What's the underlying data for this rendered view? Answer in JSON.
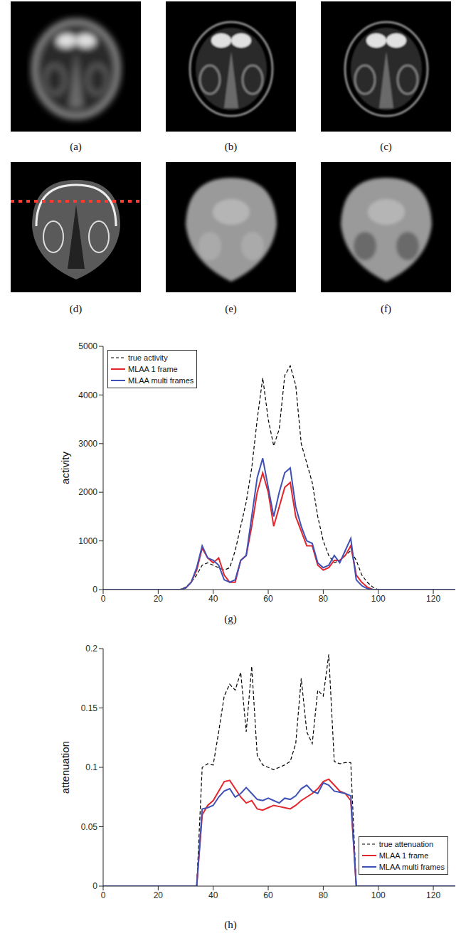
{
  "panels": [
    {
      "label": "(a)"
    },
    {
      "label": "(b)"
    },
    {
      "label": "(c)"
    },
    {
      "label": "(d)"
    },
    {
      "label": "(e)"
    },
    {
      "label": "(f)"
    }
  ],
  "chart_data": [
    {
      "label": "(g)",
      "type": "line",
      "ylabel": "activity",
      "legend": "upper left",
      "x": [
        0,
        2,
        4,
        6,
        8,
        10,
        12,
        14,
        16,
        18,
        20,
        22,
        24,
        26,
        28,
        30,
        32,
        34,
        36,
        38,
        40,
        42,
        44,
        46,
        48,
        50,
        52,
        54,
        56,
        58,
        60,
        62,
        64,
        66,
        68,
        70,
        72,
        74,
        76,
        78,
        80,
        82,
        84,
        86,
        88,
        90,
        92,
        94,
        96,
        98,
        100,
        102,
        104,
        106,
        108,
        110,
        112,
        114,
        116,
        118,
        120,
        122,
        124,
        126,
        128
      ],
      "xlim": [
        0,
        128
      ],
      "xticks": [
        0,
        20,
        40,
        60,
        80,
        100,
        120
      ],
      "ylim": [
        0,
        5000
      ],
      "yticks": [
        0,
        1000,
        2000,
        3000,
        4000,
        5000
      ],
      "series": [
        {
          "name": "true activity",
          "color": "#000000",
          "line_style": "dashed",
          "values": [
            0,
            0,
            0,
            0,
            0,
            0,
            0,
            0,
            0,
            0,
            0,
            0,
            0,
            0,
            0,
            50,
            150,
            300,
            500,
            550,
            500,
            450,
            400,
            450,
            800,
            1300,
            1800,
            2500,
            3500,
            4350,
            3500,
            2950,
            3300,
            4400,
            4600,
            4200,
            3000,
            2600,
            2200,
            1500,
            1000,
            700,
            550,
            600,
            700,
            800,
            600,
            300,
            150,
            50,
            0,
            0,
            0,
            0,
            0,
            0,
            0,
            0,
            0,
            0,
            0,
            0,
            0,
            0,
            0
          ]
        },
        {
          "name": "MLAA 1 frame",
          "color": "#e3262b",
          "line_style": "solid",
          "values": [
            0,
            0,
            0,
            0,
            0,
            0,
            0,
            0,
            0,
            0,
            0,
            0,
            0,
            0,
            0,
            30,
            150,
            400,
            850,
            650,
            550,
            650,
            300,
            150,
            150,
            600,
            700,
            1300,
            2000,
            2400,
            2000,
            1300,
            1700,
            2100,
            2200,
            1500,
            1200,
            900,
            900,
            500,
            400,
            450,
            600,
            600,
            700,
            900,
            300,
            150,
            50,
            0,
            0,
            0,
            0,
            0,
            0,
            0,
            0,
            0,
            0,
            0,
            0,
            0,
            0,
            0,
            0
          ]
        },
        {
          "name": "MLAA multi frames",
          "color": "#3f51b5",
          "line_style": "solid",
          "values": [
            0,
            0,
            0,
            0,
            0,
            0,
            0,
            0,
            0,
            0,
            0,
            0,
            0,
            0,
            0,
            30,
            150,
            450,
            900,
            650,
            600,
            500,
            200,
            150,
            200,
            600,
            700,
            1500,
            2300,
            2700,
            2100,
            1500,
            2000,
            2400,
            2500,
            1700,
            1300,
            1000,
            950,
            550,
            450,
            500,
            700,
            550,
            800,
            1050,
            200,
            80,
            20,
            0,
            0,
            0,
            0,
            0,
            0,
            0,
            0,
            0,
            0,
            0,
            0,
            0,
            0,
            0,
            0
          ]
        }
      ]
    },
    {
      "label": "(h)",
      "type": "line",
      "ylabel": "attenuation",
      "legend": "lower right",
      "x": [
        0,
        2,
        4,
        6,
        8,
        10,
        12,
        14,
        16,
        18,
        20,
        22,
        24,
        26,
        28,
        30,
        32,
        34,
        36,
        38,
        40,
        42,
        44,
        46,
        48,
        50,
        52,
        54,
        56,
        58,
        60,
        62,
        64,
        66,
        68,
        70,
        72,
        74,
        76,
        78,
        80,
        82,
        84,
        86,
        88,
        90,
        92,
        94,
        96,
        98,
        100,
        102,
        104,
        106,
        108,
        110,
        112,
        114,
        116,
        118,
        120,
        122,
        124,
        126,
        128
      ],
      "xlim": [
        0,
        128
      ],
      "xticks": [
        0,
        20,
        40,
        60,
        80,
        100,
        120
      ],
      "ylim": [
        0,
        0.2
      ],
      "yticks": [
        0,
        0.05,
        0.1,
        0.15,
        0.2
      ],
      "series": [
        {
          "name": "true attenuation",
          "color": "#000000",
          "line_style": "dashed",
          "values": [
            0,
            0,
            0,
            0,
            0,
            0,
            0,
            0,
            0,
            0,
            0,
            0,
            0,
            0,
            0,
            0,
            0,
            0,
            0.1,
            0.103,
            0.102,
            0.13,
            0.16,
            0.17,
            0.165,
            0.18,
            0.13,
            0.185,
            0.11,
            0.102,
            0.1,
            0.098,
            0.1,
            0.102,
            0.105,
            0.12,
            0.175,
            0.13,
            0.12,
            0.165,
            0.16,
            0.195,
            0.105,
            0.103,
            0.104,
            0.104,
            0,
            0,
            0,
            0,
            0,
            0,
            0,
            0,
            0,
            0,
            0,
            0,
            0,
            0,
            0,
            0,
            0,
            0,
            0
          ]
        },
        {
          "name": "MLAA 1 frame",
          "color": "#e3262b",
          "line_style": "solid",
          "values": [
            0,
            0,
            0,
            0,
            0,
            0,
            0,
            0,
            0,
            0,
            0,
            0,
            0,
            0,
            0,
            0,
            0,
            0,
            0.06,
            0.068,
            0.072,
            0.08,
            0.088,
            0.089,
            0.082,
            0.075,
            0.07,
            0.072,
            0.065,
            0.064,
            0.066,
            0.068,
            0.067,
            0.066,
            0.065,
            0.068,
            0.072,
            0.075,
            0.078,
            0.082,
            0.088,
            0.09,
            0.085,
            0.08,
            0.078,
            0.072,
            0,
            0,
            0,
            0,
            0,
            0,
            0,
            0,
            0,
            0,
            0,
            0,
            0,
            0,
            0,
            0,
            0,
            0,
            0
          ]
        },
        {
          "name": "MLAA multi frames",
          "color": "#3f51b5",
          "line_style": "solid",
          "values": [
            0,
            0,
            0,
            0,
            0,
            0,
            0,
            0,
            0,
            0,
            0,
            0,
            0,
            0,
            0,
            0,
            0,
            0,
            0.065,
            0.066,
            0.068,
            0.075,
            0.08,
            0.082,
            0.075,
            0.078,
            0.083,
            0.078,
            0.073,
            0.072,
            0.074,
            0.072,
            0.07,
            0.074,
            0.073,
            0.076,
            0.082,
            0.085,
            0.08,
            0.078,
            0.087,
            0.085,
            0.08,
            0.079,
            0.078,
            0.076,
            0,
            0,
            0,
            0,
            0,
            0,
            0,
            0,
            0,
            0,
            0,
            0,
            0,
            0,
            0,
            0,
            0,
            0,
            0
          ]
        }
      ]
    }
  ]
}
